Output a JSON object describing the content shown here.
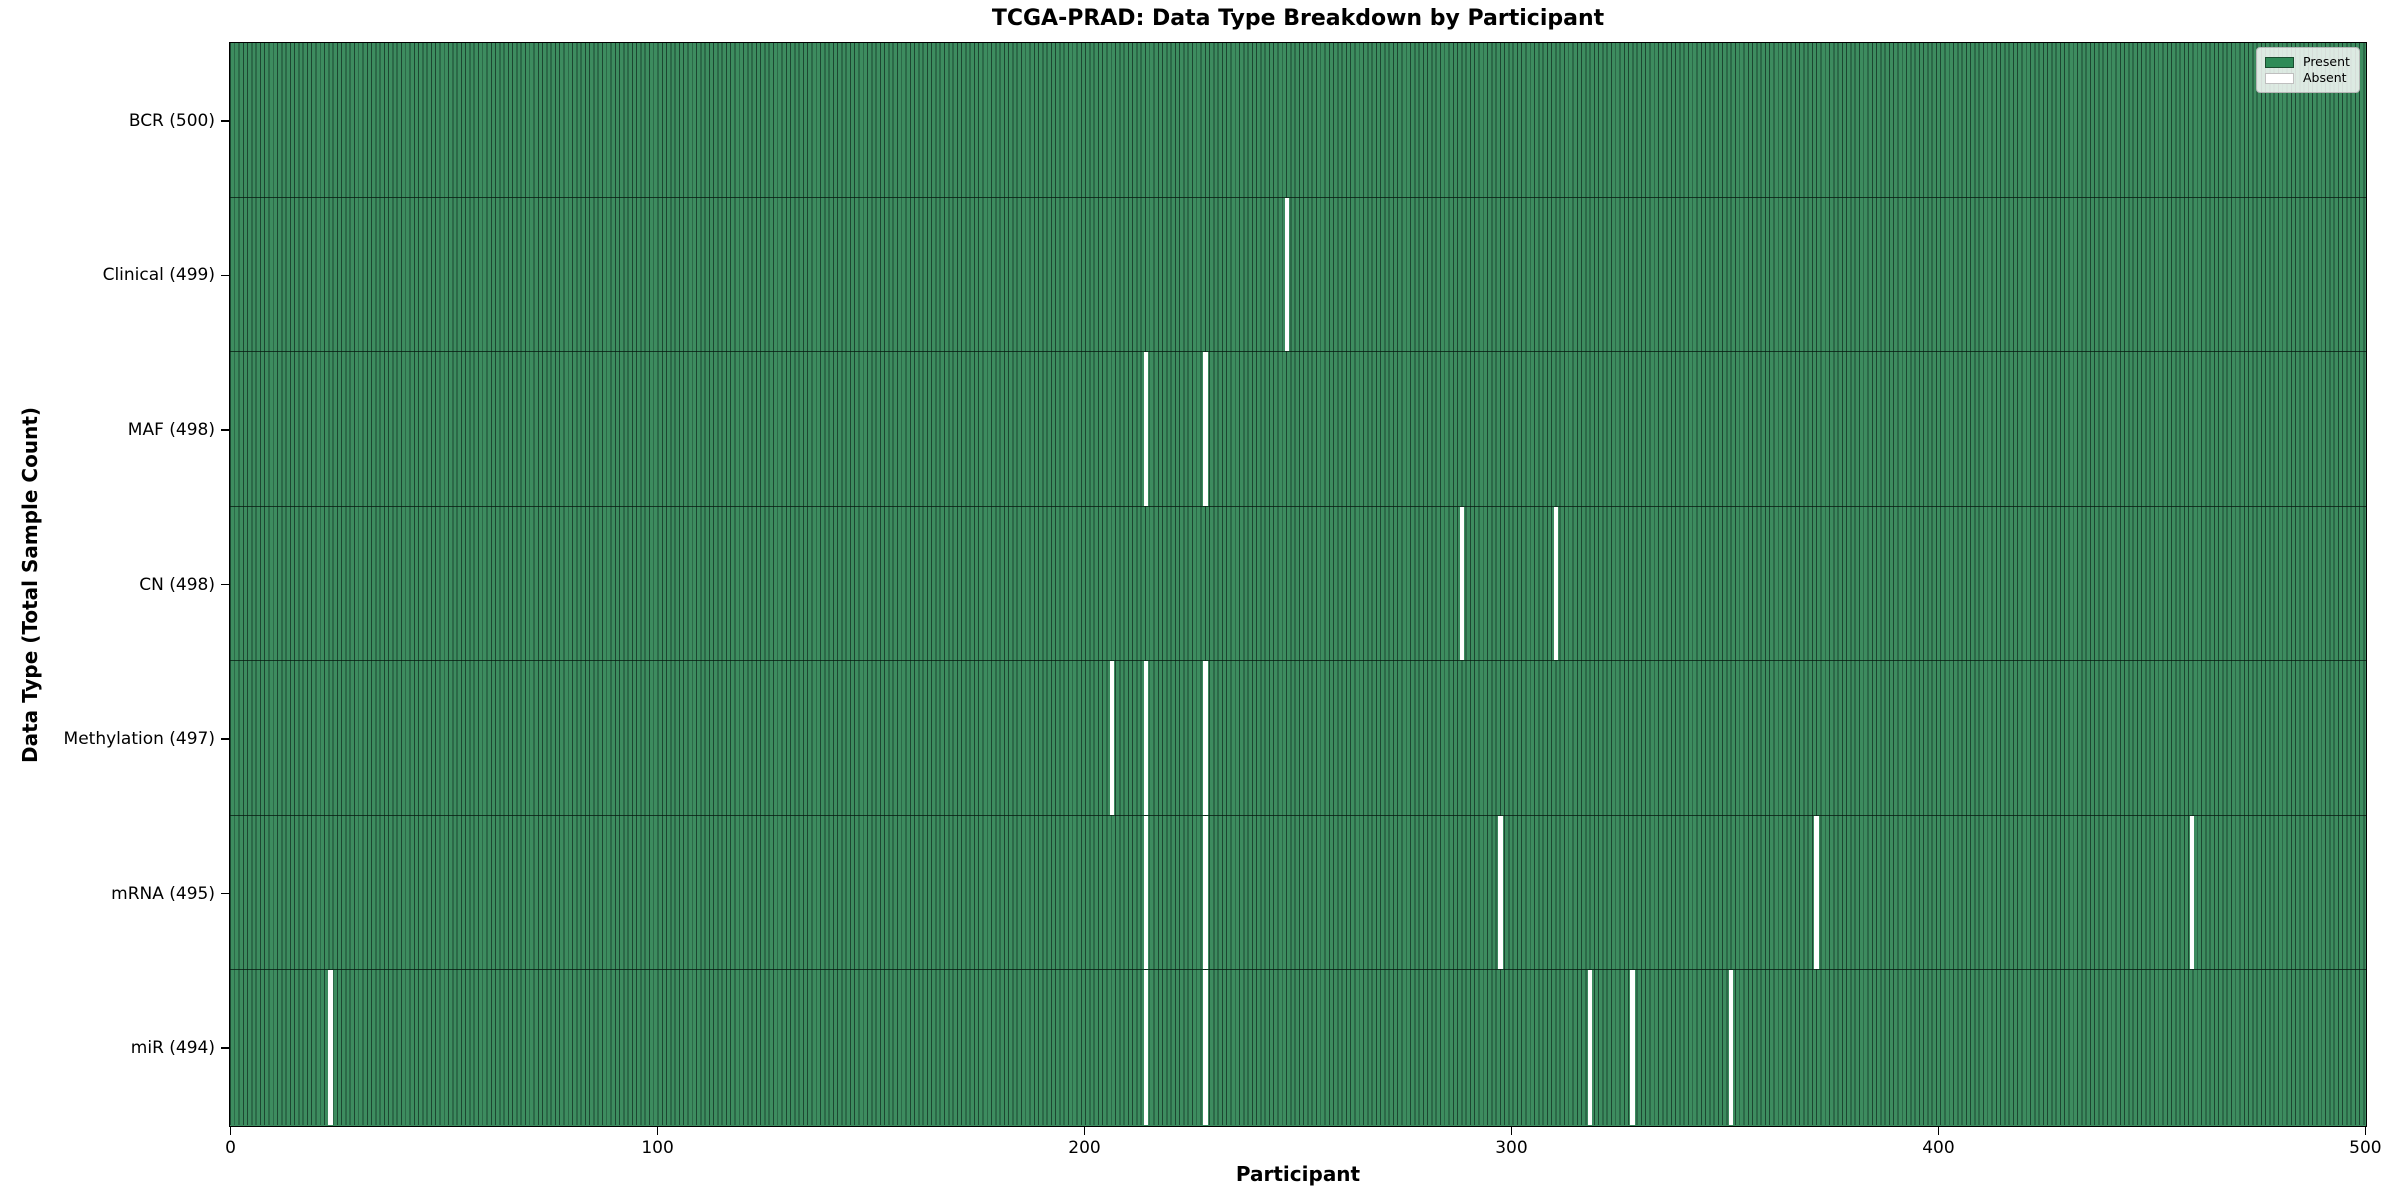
{
  "chart_data": {
    "type": "heatmap",
    "title": "TCGA-PRAD: Data Type Breakdown by Participant",
    "xlabel": "Participant",
    "ylabel": "Data Type (Total Sample Count)",
    "n_participants": 500,
    "x_ticks": [
      0,
      100,
      200,
      300,
      400,
      500
    ],
    "x_range": [
      0,
      500
    ],
    "grid": false,
    "legend": {
      "position": "upper right",
      "entries": [
        {
          "label": "Present",
          "color": "#2e8b57"
        },
        {
          "label": "Absent",
          "color": "#ffffff"
        }
      ]
    },
    "rows": [
      {
        "label": "BCR (500)",
        "data_type": "BCR",
        "present_count": 500,
        "absent_participants": []
      },
      {
        "label": "Clinical (499)",
        "data_type": "Clinical",
        "present_count": 499,
        "absent_participants": [
          247
        ]
      },
      {
        "label": "MAF (498)",
        "data_type": "MAF",
        "present_count": 498,
        "absent_participants": [
          214,
          228
        ]
      },
      {
        "label": "CN (498)",
        "data_type": "CN",
        "present_count": 498,
        "absent_participants": [
          288,
          310
        ]
      },
      {
        "label": "Methylation (497)",
        "data_type": "Methylation",
        "present_count": 497,
        "absent_participants": [
          206,
          214,
          228
        ]
      },
      {
        "label": "mRNA (495)",
        "data_type": "mRNA",
        "present_count": 495,
        "absent_participants": [
          214,
          228,
          297,
          371,
          459
        ]
      },
      {
        "label": "miR (494)",
        "data_type": "miR",
        "present_count": 494,
        "absent_participants": [
          23,
          214,
          228,
          318,
          328,
          351
        ]
      }
    ],
    "colors": {
      "present": "#2e8b57",
      "absent": "#ffffff",
      "bar_edge": "#1c4631",
      "frame": "#000000"
    }
  }
}
